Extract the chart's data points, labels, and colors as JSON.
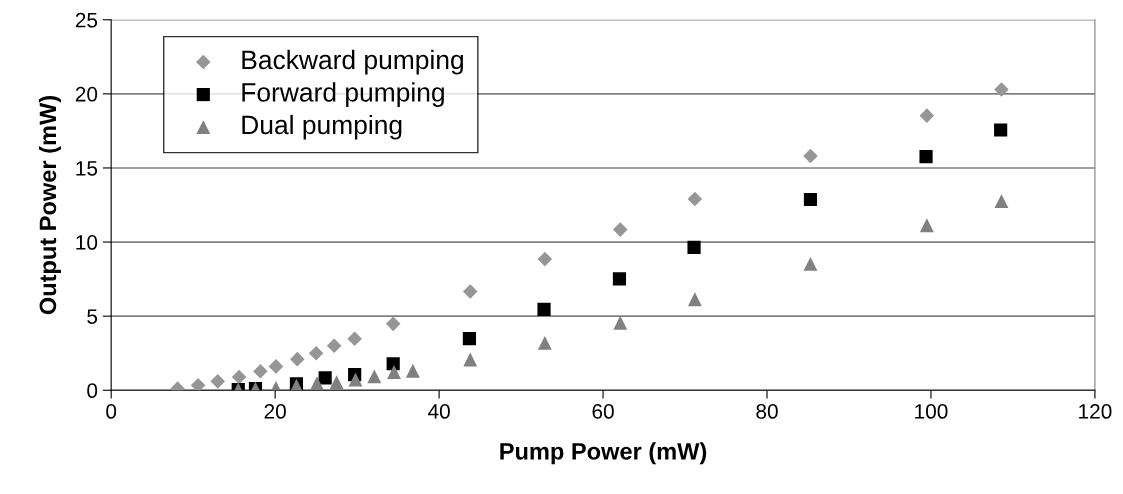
{
  "chart_data": {
    "type": "scatter",
    "xlabel": "Pump Power (mW)",
    "ylabel": "Output Power (mW)",
    "xlim": [
      0,
      120
    ],
    "xticks": [
      0,
      20,
      40,
      60,
      80,
      100,
      120
    ],
    "ylim": [
      0,
      25
    ],
    "yticks": [
      0,
      5,
      10,
      15,
      20,
      25
    ],
    "grid": "y",
    "legend": "top left",
    "series": [
      {
        "name": "Backward pumping",
        "color": "#969696",
        "marker": "diamond",
        "x": [
          8.1,
          10.6,
          13.0,
          15.6,
          18.2,
          20.1,
          22.7,
          25.0,
          27.2,
          29.7,
          34.4,
          43.8,
          52.9,
          62.1,
          71.2,
          85.3,
          99.5,
          108.6
        ],
        "values": [
          0.11,
          0.34,
          0.6,
          0.9,
          1.28,
          1.61,
          2.1,
          2.5,
          3.0,
          3.48,
          4.48,
          6.66,
          8.85,
          10.84,
          12.9,
          15.81,
          18.53,
          20.29
        ]
      },
      {
        "name": "Forward pumping",
        "color": "#000000",
        "marker": "square",
        "x": [
          15.5,
          17.6,
          22.6,
          26.1,
          29.7,
          34.4,
          43.7,
          52.8,
          62.0,
          71.1,
          85.3,
          99.4,
          108.5
        ],
        "values": [
          0.04,
          0.11,
          0.43,
          0.83,
          1.05,
          1.79,
          3.48,
          5.46,
          7.52,
          9.64,
          12.87,
          15.77,
          17.56
        ]
      },
      {
        "name": "Dual pumping",
        "color": "#808080",
        "marker": "triangle",
        "x": [
          15.5,
          17.6,
          20.1,
          22.6,
          25.1,
          27.5,
          29.8,
          32.1,
          34.5,
          36.8,
          43.8,
          52.9,
          62.1,
          71.2,
          85.3,
          99.5,
          108.6
        ],
        "values": [
          0.05,
          0.1,
          0.16,
          0.3,
          0.47,
          0.54,
          0.72,
          0.94,
          1.23,
          1.32,
          2.08,
          3.2,
          4.56,
          6.14,
          8.53,
          11.13,
          12.76
        ]
      }
    ]
  }
}
